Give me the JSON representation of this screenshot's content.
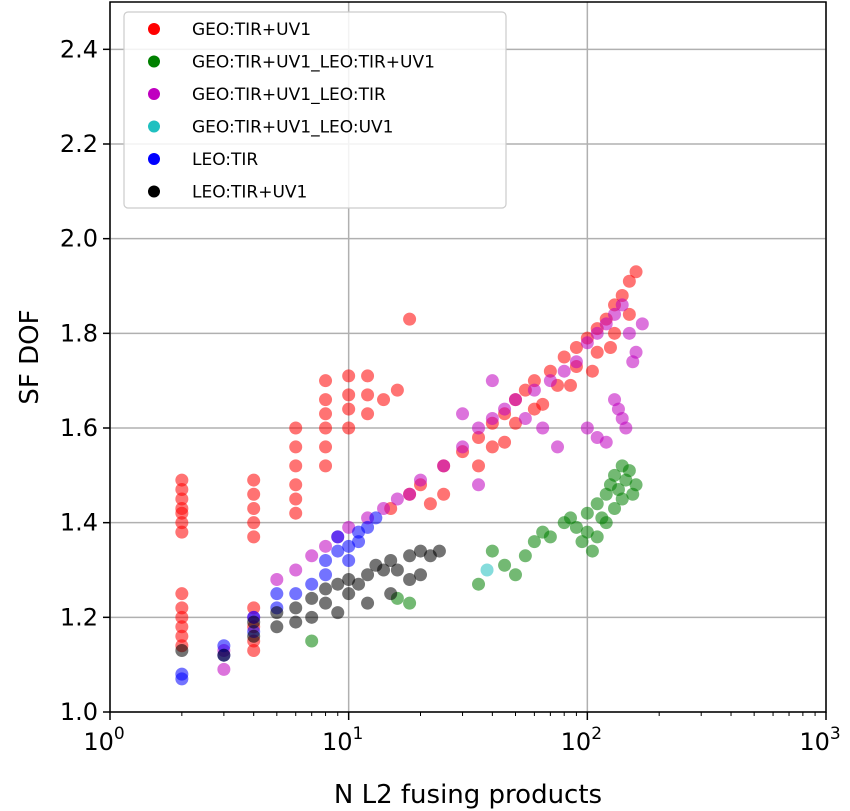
{
  "chart_data": {
    "type": "scatter",
    "title": "",
    "xlabel": "N L2 fusing products",
    "ylabel": "SF DOF",
    "xscale": "log",
    "xlim": [
      1,
      1000
    ],
    "ylim": [
      1.0,
      2.5
    ],
    "x_ticks": [
      {
        "value": 1,
        "base": "10",
        "exp": "0"
      },
      {
        "value": 10,
        "base": "10",
        "exp": "1"
      },
      {
        "value": 100,
        "base": "10",
        "exp": "2"
      },
      {
        "value": 1000,
        "base": "10",
        "exp": "3"
      }
    ],
    "y_ticks": [
      "1.0",
      "1.2",
      "1.4",
      "1.6",
      "1.8",
      "2.0",
      "2.2",
      "2.4"
    ],
    "grid": true,
    "legend_position": "top-left",
    "series": [
      {
        "name": "GEO:TIR+UV1",
        "color": "#ff0000",
        "points": [
          [
            2,
            1.49
          ],
          [
            2,
            1.47
          ],
          [
            2,
            1.45
          ],
          [
            2,
            1.43
          ],
          [
            2,
            1.42
          ],
          [
            2,
            1.4
          ],
          [
            2,
            1.38
          ],
          [
            2,
            1.25
          ],
          [
            2,
            1.22
          ],
          [
            2,
            1.2
          ],
          [
            2,
            1.18
          ],
          [
            2,
            1.16
          ],
          [
            2,
            1.14
          ],
          [
            4,
            1.49
          ],
          [
            4,
            1.46
          ],
          [
            4,
            1.43
          ],
          [
            4,
            1.4
          ],
          [
            4,
            1.37
          ],
          [
            4,
            1.22
          ],
          [
            4,
            1.18
          ],
          [
            4,
            1.15
          ],
          [
            4,
            1.13
          ],
          [
            6,
            1.6
          ],
          [
            6,
            1.56
          ],
          [
            6,
            1.52
          ],
          [
            6,
            1.48
          ],
          [
            6,
            1.45
          ],
          [
            6,
            1.42
          ],
          [
            8,
            1.7
          ],
          [
            8,
            1.66
          ],
          [
            8,
            1.63
          ],
          [
            8,
            1.6
          ],
          [
            8,
            1.56
          ],
          [
            8,
            1.52
          ],
          [
            10,
            1.71
          ],
          [
            10,
            1.67
          ],
          [
            10,
            1.64
          ],
          [
            10,
            1.6
          ],
          [
            12,
            1.71
          ],
          [
            12,
            1.67
          ],
          [
            12,
            1.63
          ],
          [
            14,
            1.66
          ],
          [
            16,
            1.68
          ],
          [
            18,
            1.83
          ],
          [
            15,
            1.43
          ],
          [
            18,
            1.46
          ],
          [
            20,
            1.48
          ],
          [
            25,
            1.52
          ],
          [
            30,
            1.55
          ],
          [
            35,
            1.58
          ],
          [
            40,
            1.61
          ],
          [
            45,
            1.63
          ],
          [
            50,
            1.66
          ],
          [
            55,
            1.68
          ],
          [
            60,
            1.7
          ],
          [
            70,
            1.72
          ],
          [
            80,
            1.75
          ],
          [
            90,
            1.77
          ],
          [
            100,
            1.79
          ],
          [
            110,
            1.81
          ],
          [
            120,
            1.83
          ],
          [
            130,
            1.86
          ],
          [
            140,
            1.88
          ],
          [
            150,
            1.91
          ],
          [
            160,
            1.93
          ],
          [
            45,
            1.57
          ],
          [
            60,
            1.64
          ],
          [
            75,
            1.69
          ],
          [
            90,
            1.73
          ],
          [
            110,
            1.76
          ],
          [
            130,
            1.8
          ],
          [
            50,
            1.61
          ],
          [
            65,
            1.65
          ],
          [
            85,
            1.69
          ],
          [
            105,
            1.72
          ],
          [
            125,
            1.77
          ],
          [
            150,
            1.84
          ],
          [
            35,
            1.52
          ],
          [
            40,
            1.56
          ],
          [
            25,
            1.46
          ],
          [
            22,
            1.44
          ]
        ]
      },
      {
        "name": "GEO:TIR+UV1_LEO:TIR+UV1",
        "color": "#008000",
        "points": [
          [
            7,
            1.15
          ],
          [
            16,
            1.24
          ],
          [
            18,
            1.23
          ],
          [
            35,
            1.27
          ],
          [
            40,
            1.34
          ],
          [
            45,
            1.31
          ],
          [
            50,
            1.29
          ],
          [
            55,
            1.33
          ],
          [
            60,
            1.36
          ],
          [
            65,
            1.38
          ],
          [
            70,
            1.37
          ],
          [
            80,
            1.4
          ],
          [
            90,
            1.39
          ],
          [
            100,
            1.42
          ],
          [
            100,
            1.38
          ],
          [
            105,
            1.34
          ],
          [
            110,
            1.44
          ],
          [
            115,
            1.41
          ],
          [
            120,
            1.46
          ],
          [
            125,
            1.48
          ],
          [
            130,
            1.5
          ],
          [
            135,
            1.47
          ],
          [
            140,
            1.45
          ],
          [
            145,
            1.49
          ],
          [
            150,
            1.51
          ],
          [
            155,
            1.46
          ],
          [
            160,
            1.48
          ],
          [
            110,
            1.37
          ],
          [
            120,
            1.4
          ],
          [
            130,
            1.43
          ],
          [
            140,
            1.52
          ],
          [
            95,
            1.36
          ],
          [
            85,
            1.41
          ]
        ]
      },
      {
        "name": "GEO:TIR+UV1_LEO:TIR",
        "color": "#c000c0",
        "points": [
          [
            3,
            1.09
          ],
          [
            3,
            1.13
          ],
          [
            4,
            1.2
          ],
          [
            5,
            1.28
          ],
          [
            6,
            1.3
          ],
          [
            7,
            1.33
          ],
          [
            8,
            1.35
          ],
          [
            9,
            1.37
          ],
          [
            10,
            1.39
          ],
          [
            12,
            1.41
          ],
          [
            14,
            1.43
          ],
          [
            16,
            1.45
          ],
          [
            18,
            1.46
          ],
          [
            20,
            1.49
          ],
          [
            25,
            1.52
          ],
          [
            30,
            1.56
          ],
          [
            35,
            1.6
          ],
          [
            40,
            1.62
          ],
          [
            45,
            1.64
          ],
          [
            50,
            1.66
          ],
          [
            55,
            1.62
          ],
          [
            60,
            1.68
          ],
          [
            70,
            1.7
          ],
          [
            80,
            1.72
          ],
          [
            90,
            1.74
          ],
          [
            100,
            1.78
          ],
          [
            110,
            1.8
          ],
          [
            120,
            1.82
          ],
          [
            130,
            1.84
          ],
          [
            140,
            1.86
          ],
          [
            150,
            1.8
          ],
          [
            160,
            1.76
          ],
          [
            130,
            1.66
          ],
          [
            135,
            1.64
          ],
          [
            140,
            1.62
          ],
          [
            145,
            1.6
          ],
          [
            120,
            1.57
          ],
          [
            110,
            1.58
          ],
          [
            100,
            1.6
          ],
          [
            75,
            1.56
          ],
          [
            65,
            1.6
          ],
          [
            170,
            1.82
          ],
          [
            155,
            1.74
          ],
          [
            30,
            1.63
          ],
          [
            40,
            1.7
          ],
          [
            35,
            1.48
          ]
        ]
      },
      {
        "name": "GEO:TIR+UV1_LEO:UV1",
        "color": "#20c0c0",
        "points": [
          [
            38,
            1.3
          ]
        ]
      },
      {
        "name": "LEO:TIR",
        "color": "#0000ff",
        "points": [
          [
            2,
            1.08
          ],
          [
            2,
            1.07
          ],
          [
            3,
            1.12
          ],
          [
            3,
            1.14
          ],
          [
            4,
            1.17
          ],
          [
            4,
            1.2
          ],
          [
            5,
            1.22
          ],
          [
            5,
            1.25
          ],
          [
            6,
            1.25
          ],
          [
            7,
            1.27
          ],
          [
            8,
            1.29
          ],
          [
            8,
            1.32
          ],
          [
            9,
            1.34
          ],
          [
            9,
            1.37
          ],
          [
            10,
            1.35
          ],
          [
            11,
            1.38
          ],
          [
            12,
            1.39
          ],
          [
            13,
            1.41
          ],
          [
            10,
            1.32
          ],
          [
            11,
            1.36
          ]
        ]
      },
      {
        "name": "LEO:TIR+UV1",
        "color": "#000000",
        "points": [
          [
            2,
            1.13
          ],
          [
            3,
            1.12
          ],
          [
            4,
            1.16
          ],
          [
            4,
            1.19
          ],
          [
            5,
            1.18
          ],
          [
            5,
            1.21
          ],
          [
            6,
            1.19
          ],
          [
            6,
            1.22
          ],
          [
            7,
            1.2
          ],
          [
            7,
            1.24
          ],
          [
            8,
            1.23
          ],
          [
            8,
            1.26
          ],
          [
            9,
            1.21
          ],
          [
            9,
            1.27
          ],
          [
            10,
            1.25
          ],
          [
            10,
            1.28
          ],
          [
            11,
            1.27
          ],
          [
            12,
            1.29
          ],
          [
            13,
            1.31
          ],
          [
            14,
            1.3
          ],
          [
            15,
            1.32
          ],
          [
            16,
            1.3
          ],
          [
            18,
            1.33
          ],
          [
            20,
            1.34
          ],
          [
            20,
            1.29
          ],
          [
            22,
            1.33
          ],
          [
            24,
            1.34
          ],
          [
            15,
            1.25
          ],
          [
            12,
            1.23
          ],
          [
            18,
            1.28
          ]
        ]
      }
    ]
  }
}
